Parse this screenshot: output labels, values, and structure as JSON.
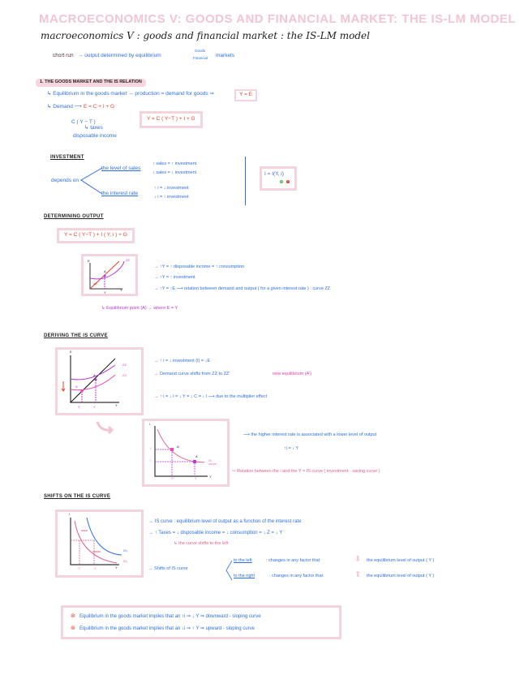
{
  "title": {
    "shadow": "MACROECONOMICS V: GOODS AND FINANCIAL MARKET: THE IS-LM MODEL",
    "text": "macroeconomics V : goods and financial market : the IS-LM model"
  },
  "short_run": {
    "label": "short run",
    "text": "→ output determined by equilibrium",
    "markets": [
      "Goods",
      "Financial"
    ],
    "suffix": "markets"
  },
  "section1": {
    "heading": "1. THE GOODS MARKET AND THE IS RELATION",
    "equilibrium": "↳ Equilibrium in the goods market → production = demand for goods ⇒",
    "equilibrium_box": "Y = E",
    "demand": "↳ Demand ⟶",
    "demand_eq": "E = C + I + G",
    "formula_box": "Y = C ( Y−T ) + I + G",
    "consumption": "C ( Y − T )",
    "taxes": "↳ taxes",
    "disposable": "disposable income"
  },
  "investment": {
    "heading": "INVESTMENT",
    "depends": "depends on",
    "sales_label": "the level of sales",
    "sales": [
      "↑ sales = ↑ investment",
      "↓ sales = ↓ investment"
    ],
    "rate_label": "the interest rate",
    "rate": [
      "↑ i = ↓ investment",
      "↓ i = ↑ investment"
    ],
    "box": "I = I(Y, i)",
    "signs": [
      "+",
      "−"
    ],
    "sign_colors": [
      "#5cb85c",
      "#e8402a"
    ]
  },
  "determining": {
    "heading": "DETERMINING OUTPUT",
    "formula": "Y = C ( Y−T ) + I ( Y, i ) + G",
    "chart_labels": {
      "y": "E",
      "x": "Y",
      "curve": "ZZ",
      "point": "A",
      "angle": "45°",
      "xmark": "Y"
    },
    "bullets": [
      "→  ↑Y = ↑ disposable income = ↑ consumption",
      "→  ↑Y = ↑ investment",
      "→  ↑Y = ↑E ⟶ relation between demand and output ( for a given interest rate ) : curve ZZ"
    ],
    "equilibrium_point": "↳ Equilibrium point (A) → where  E = Y"
  },
  "deriving": {
    "heading": "DERIVING THE IS CURVE",
    "chart1_labels": {
      "y": "E",
      "x": "Y",
      "zz": "ZZ",
      "zz2": "ZZ'",
      "a": "A",
      "a2": "A'",
      "y1": "Y'",
      "y0": "Y"
    },
    "bullets": [
      "→ ↑ i = ↓ investment (I) = ↓E",
      "→ Demand curve shifts from ZZ to ZZ'",
      " new equilibrium (A')",
      "→ ↑ i = ↓ I = ↓ Y = ↓ C = ↓ I ⟶ due to the multiplier effect"
    ],
    "chart2_labels": {
      "y": "i",
      "x": "Y",
      "i1": "i'",
      "i0": "i",
      "a": "A",
      "a2": "A'",
      "y1": "Y'",
      "y0": "Y",
      "curve": "IS curve"
    },
    "higher": "⟶ the higher interest rate is associated with a lower level of output",
    "higher2": "↑i = ↓ Y",
    "relation": "⇨  Relation between the i and the Y = IS curve  ( investment - saving curve )"
  },
  "shifts": {
    "heading": "SHIFTS ON THE IS CURVE",
    "chart_labels": {
      "y": "i",
      "x": "Y",
      "is0": "IS₀",
      "is1": "IS₁",
      "y1": "Y'",
      "y0": "Y"
    },
    "bullets": [
      "→  IS curve : equilibrium level of output as a function of the interest rate",
      "→  ↑ Taxes = ↓ disposable income = ↓ consumption = ↓ Z = ↓ Y"
    ],
    "note": "↳ the curve shifts to the left",
    "shifts_label": "→ Shifts of IS curve",
    "left_label": "to the left",
    "left_text": ": changes in any factor that",
    "right_label": "to the right",
    "right_text": ": changes in any factor that",
    "result": "the equilibrium level of output ( Y )"
  },
  "summary": [
    "Equilibrium in the goods market implies that an ↑i ⇒ ↓ Y  ⇒ downward - sloping curve",
    "Equilibrium in the goods market implies that an ↓i ⇒ ↑ Y  ⇒ upward - sloping curve"
  ],
  "colors": {
    "blue": "#2d6fe6",
    "pink": "#e2608f",
    "red": "#e8402a",
    "purple": "#b93ad6",
    "box_border": "#f3d4dc"
  }
}
